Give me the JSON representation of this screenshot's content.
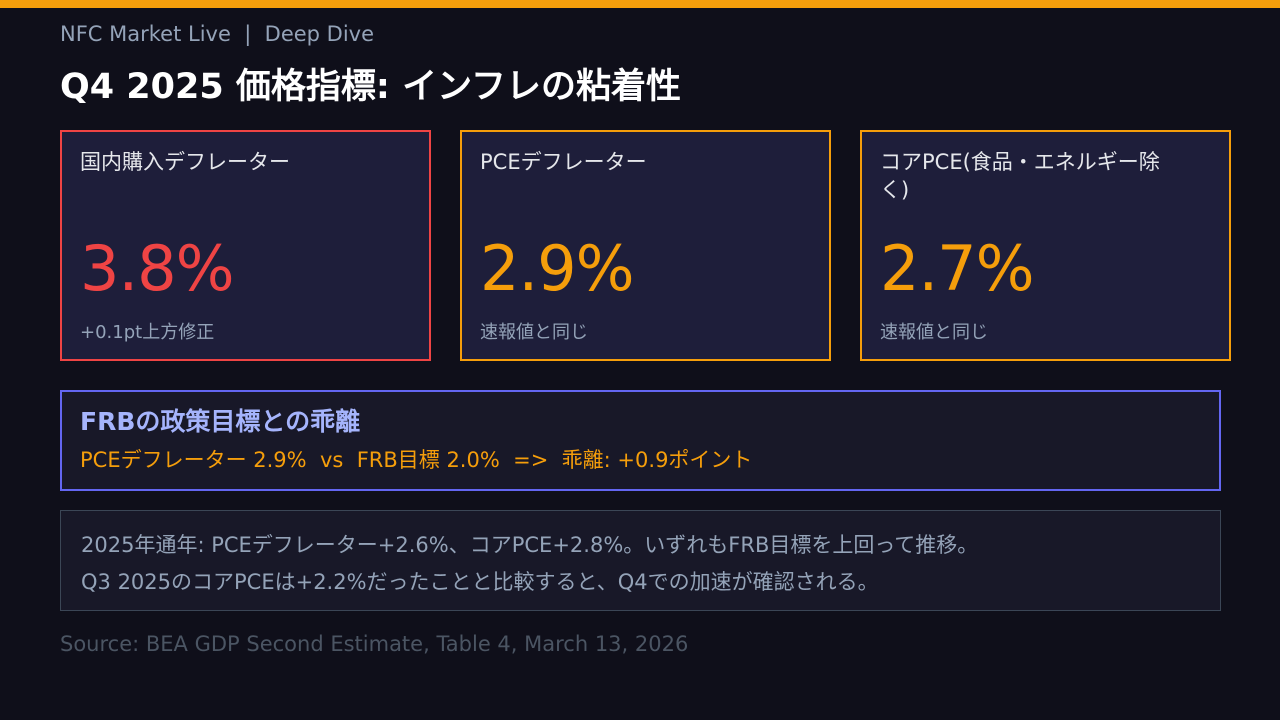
{
  "header": {
    "kicker": "NFC Market Live  |  Deep Dive",
    "title": "Q4 2025 価格指標: インフレの粘着性"
  },
  "cards": [
    {
      "label": "国内購入デフレーター",
      "value": "3.8%",
      "note": "+0.1pt上方修正",
      "color": "#ef4444"
    },
    {
      "label": "PCEデフレーター",
      "value": "2.9%",
      "note": "速報値と同じ",
      "color": "#f59e0b"
    },
    {
      "label": "コアPCE(食品・エネルギー除く)",
      "value": "2.7%",
      "note": "速報値と同じ",
      "color": "#f59e0b"
    }
  ],
  "gap": {
    "heading": "FRBの政策目標との乖離",
    "line": "PCEデフレーター 2.9%  vs  FRB目標 2.0%  =>  乖離: +0.9ポイント"
  },
  "notes": [
    "2025年通年: PCEデフレーター+2.6%、コアPCE+2.8%。いずれもFRB目標を上回って推移。",
    "Q3 2025のコアPCEは+2.2%だったことと比較すると、Q4での加速が確認される。"
  ],
  "source": "Source: BEA GDP Second Estimate, Table 4, March 13, 2026",
  "colors": {
    "accent": "#f59e0b",
    "alert": "#ef4444",
    "highlight": "#6366f1"
  }
}
